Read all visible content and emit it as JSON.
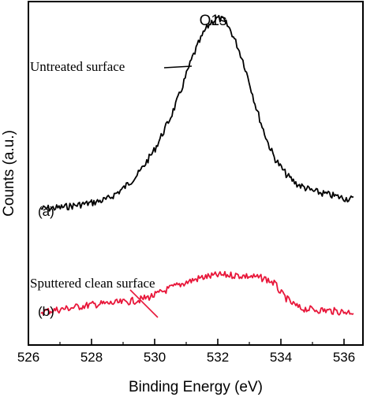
{
  "chart_data": {
    "type": "line",
    "title": "O1s",
    "xlabel": "Binding Energy (eV)",
    "ylabel": "Counts (a.u.)",
    "xlim": [
      526,
      536.6
    ],
    "xticks": [
      526,
      528,
      530,
      532,
      534,
      536
    ],
    "x_tick_labels": [
      "526",
      "528",
      "530",
      "532",
      "534",
      "536"
    ],
    "y_ticks_shown": false,
    "grid": false,
    "series": [
      {
        "label": "(a)",
        "annotation": "Untreated surface",
        "color": "#000000",
        "x": [
          526.4,
          527.0,
          527.5,
          528.0,
          528.5,
          529.0,
          529.5,
          530.0,
          530.5,
          530.8,
          531.0,
          531.2,
          531.4,
          531.6,
          531.8,
          532.0,
          532.2,
          532.4,
          532.6,
          532.8,
          533.0,
          533.2,
          533.4,
          533.6,
          533.8,
          534.0,
          534.2,
          534.5,
          535.0,
          535.5,
          536.0,
          536.3
        ],
        "values": [
          0.15,
          0.16,
          0.18,
          0.2,
          0.23,
          0.32,
          0.45,
          0.65,
          0.92,
          1.12,
          1.28,
          1.43,
          1.55,
          1.66,
          1.73,
          1.76,
          1.74,
          1.66,
          1.54,
          1.4,
          1.22,
          1.02,
          0.85,
          0.7,
          0.58,
          0.5,
          0.43,
          0.36,
          0.3,
          0.27,
          0.24,
          0.23
        ]
      },
      {
        "label": "(b)",
        "annotation": "Sputtered clean surface",
        "color": "#e8173a",
        "x": [
          526.4,
          527.0,
          527.5,
          528.0,
          528.5,
          529.0,
          529.5,
          530.0,
          530.5,
          531.0,
          531.5,
          532.0,
          532.5,
          533.0,
          533.5,
          533.8,
          534.0,
          534.3,
          534.6,
          535.0,
          535.5,
          536.0,
          536.3
        ],
        "values": [
          -0.72,
          -0.7,
          -0.68,
          -0.66,
          -0.65,
          -0.64,
          -0.62,
          -0.58,
          -0.52,
          -0.47,
          -0.43,
          -0.41,
          -0.41,
          -0.42,
          -0.44,
          -0.48,
          -0.56,
          -0.64,
          -0.69,
          -0.7,
          -0.71,
          -0.72,
          -0.72
        ]
      }
    ]
  }
}
